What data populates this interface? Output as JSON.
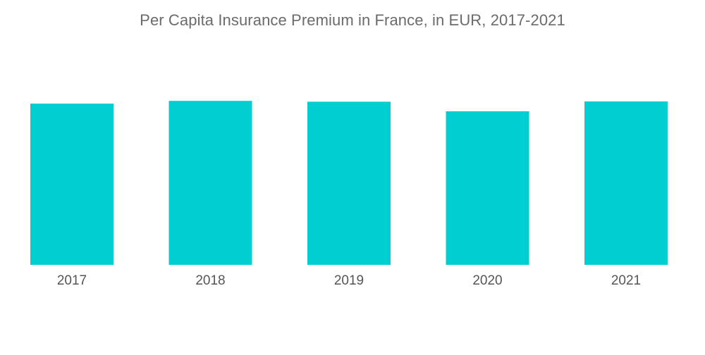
{
  "chart_data": {
    "type": "bar",
    "title": "Per Capita Insurance Premium in France, in EUR, 2017-2021",
    "xlabel": "",
    "ylabel": "",
    "categories": [
      "2017",
      "2018",
      "2019",
      "2020",
      "2021"
    ],
    "values": [
      2930,
      2980,
      2965,
      2790,
      2970
    ],
    "ylim": [
      0,
      3200
    ],
    "grid": false,
    "legend": "none",
    "bar_color": "#00cfd2"
  }
}
